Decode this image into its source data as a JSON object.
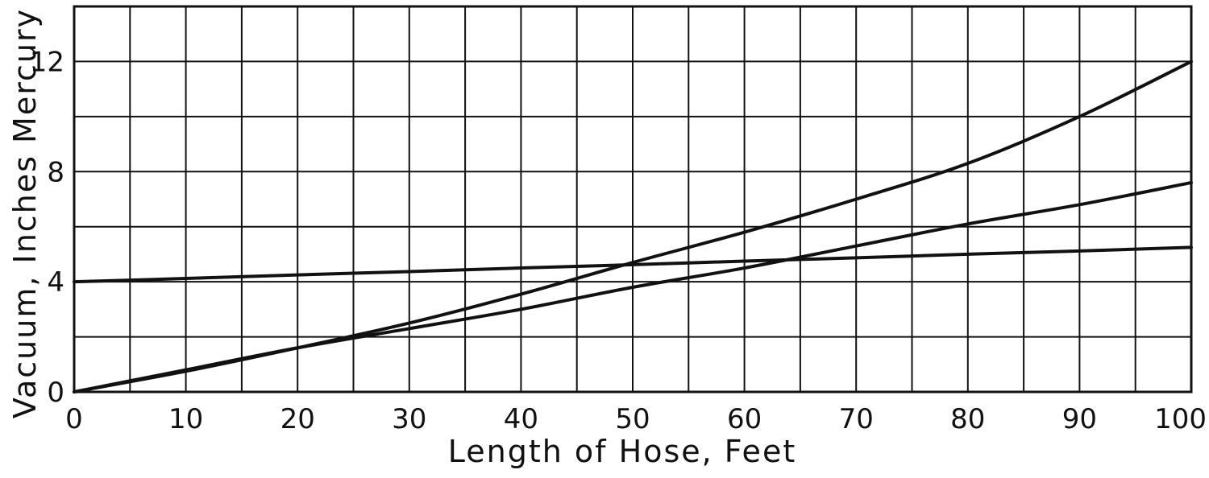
{
  "chart_data": {
    "type": "line",
    "title": "",
    "xlabel": "Length of Hose, Feet",
    "ylabel": "Vacuum, Inches Mercury",
    "xlim": [
      0,
      100
    ],
    "ylim": [
      0,
      14
    ],
    "x_ticks": [
      0,
      10,
      20,
      30,
      40,
      50,
      60,
      70,
      80,
      90,
      100
    ],
    "y_ticks": [
      0,
      4,
      8,
      12
    ],
    "x_minor_step": 5,
    "y_minor_step": 2,
    "grid": true,
    "legend": "none",
    "series": [
      {
        "x": [
          0,
          10,
          20,
          30,
          40,
          50,
          60,
          70,
          80,
          90,
          100
        ],
        "y": [
          4.0,
          4.12,
          4.25,
          4.37,
          4.5,
          4.62,
          4.75,
          4.87,
          5.0,
          5.12,
          5.25
        ]
      },
      {
        "x": [
          0,
          10,
          20,
          30,
          40,
          50,
          60,
          70,
          80,
          90,
          100
        ],
        "y": [
          0,
          0.8,
          1.6,
          2.3,
          3.0,
          3.8,
          4.5,
          5.3,
          6.1,
          6.8,
          7.6
        ]
      },
      {
        "x": [
          0,
          10,
          20,
          30,
          40,
          50,
          60,
          70,
          80,
          90,
          100
        ],
        "y": [
          0,
          0.75,
          1.6,
          2.5,
          3.55,
          4.7,
          5.8,
          7.0,
          8.3,
          10.0,
          12.0
        ]
      }
    ]
  }
}
